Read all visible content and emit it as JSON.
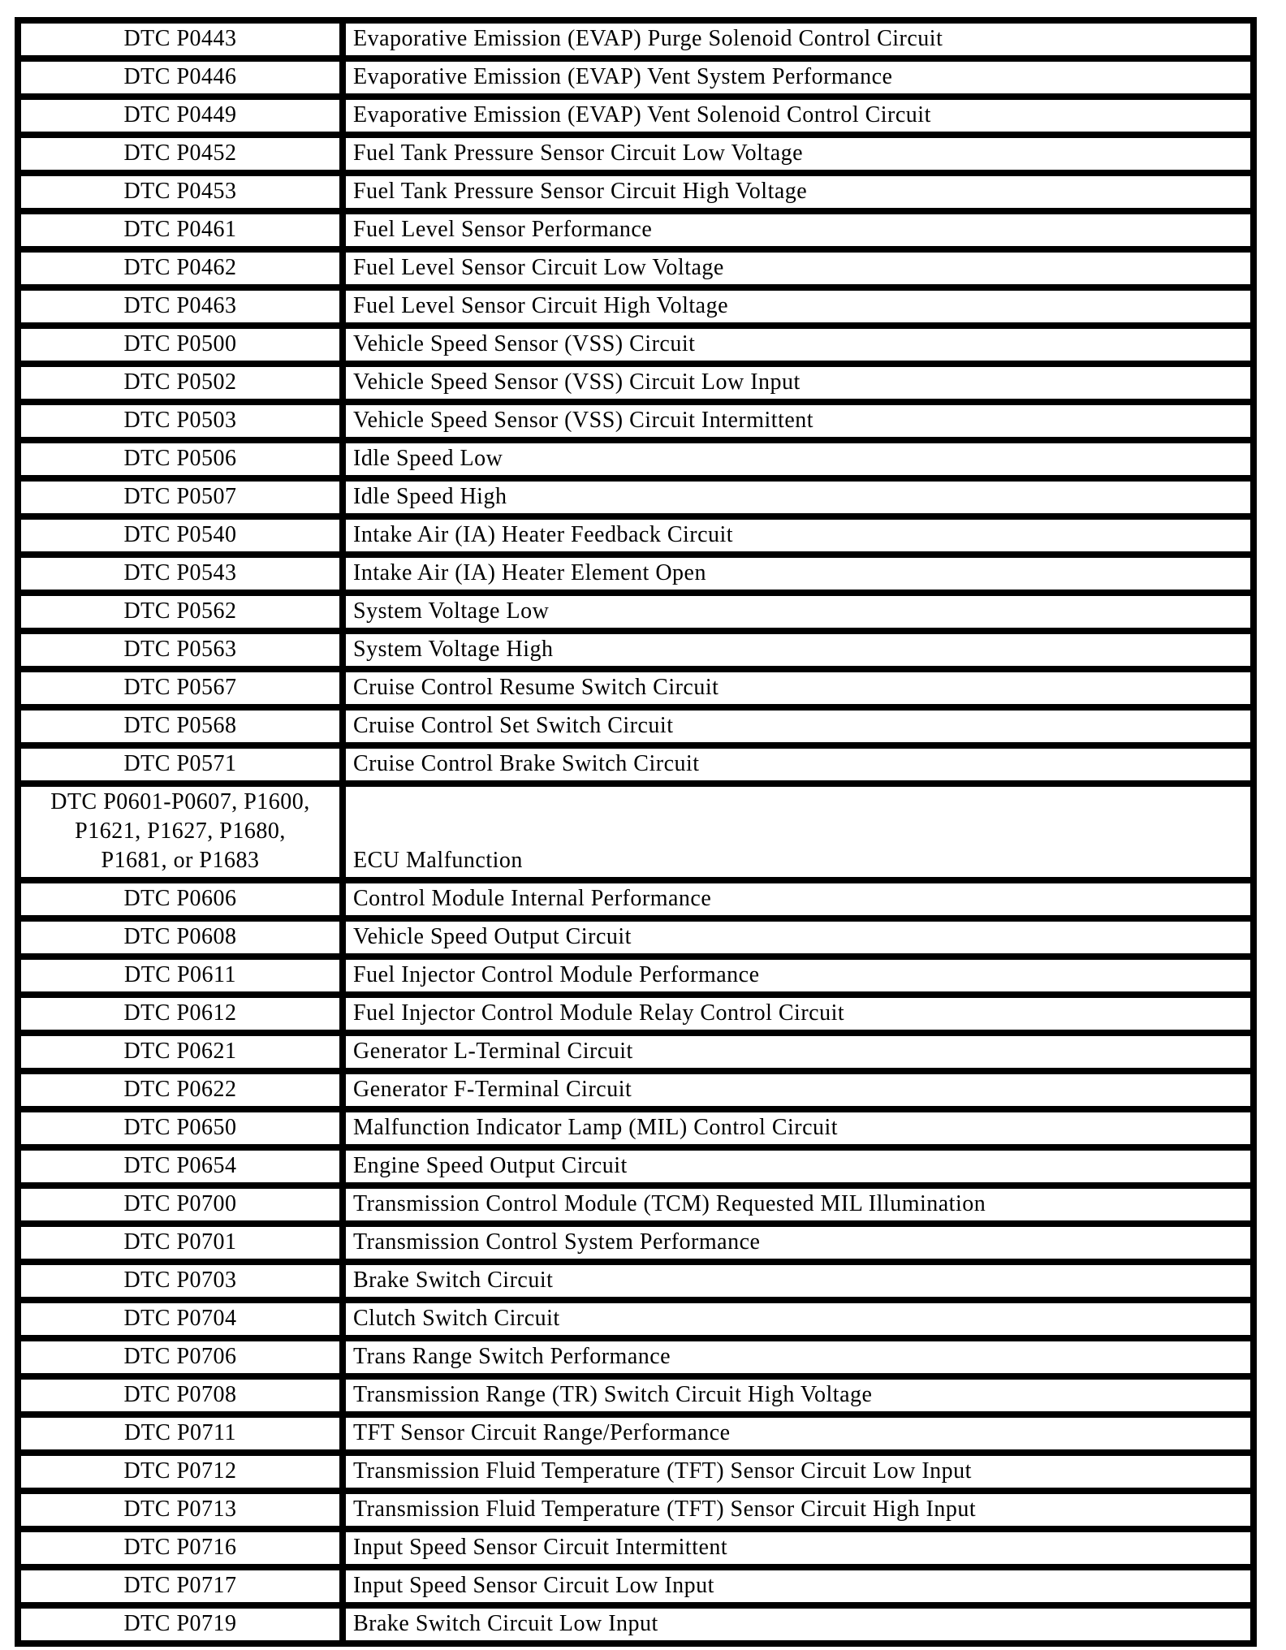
{
  "colors": {
    "background": "#ffffff",
    "border": "#000000",
    "text": "#000000"
  },
  "table": {
    "columns": [
      "dtc_code",
      "description"
    ],
    "rows": [
      {
        "code": "DTC P0443",
        "description": "Evaporative Emission (EVAP) Purge Solenoid Control Circuit"
      },
      {
        "code": "DTC P0446",
        "description": "Evaporative Emission (EVAP) Vent System Performance"
      },
      {
        "code": "DTC P0449",
        "description": "Evaporative Emission (EVAP) Vent Solenoid Control Circuit"
      },
      {
        "code": "DTC P0452",
        "description": "Fuel Tank Pressure Sensor Circuit Low Voltage"
      },
      {
        "code": "DTC P0453",
        "description": "Fuel Tank Pressure Sensor Circuit High Voltage"
      },
      {
        "code": "DTC P0461",
        "description": "Fuel Level Sensor Performance"
      },
      {
        "code": "DTC P0462",
        "description": "Fuel Level Sensor Circuit Low Voltage"
      },
      {
        "code": "DTC P0463",
        "description": "Fuel Level Sensor Circuit High Voltage"
      },
      {
        "code": "DTC P0500",
        "description": "Vehicle Speed Sensor (VSS) Circuit"
      },
      {
        "code": "DTC P0502",
        "description": "Vehicle Speed Sensor (VSS) Circuit Low Input"
      },
      {
        "code": "DTC P0503",
        "description": "Vehicle Speed Sensor (VSS) Circuit Intermittent"
      },
      {
        "code": "DTC P0506",
        "description": "Idle Speed Low"
      },
      {
        "code": "DTC P0507",
        "description": "Idle Speed High"
      },
      {
        "code": "DTC P0540",
        "description": "Intake Air (IA) Heater Feedback Circuit"
      },
      {
        "code": "DTC P0543",
        "description": "Intake Air (IA) Heater Element Open"
      },
      {
        "code": "DTC P0562",
        "description": "System Voltage Low"
      },
      {
        "code": "DTC P0563",
        "description": "System Voltage High"
      },
      {
        "code": "DTC P0567",
        "description": "Cruise Control Resume Switch Circuit"
      },
      {
        "code": "DTC P0568",
        "description": "Cruise Control Set Switch Circuit"
      },
      {
        "code": "DTC P0571",
        "description": "Cruise Control Brake Switch Circuit"
      },
      {
        "code": "DTC P0601-P0607, P1600,\nP1621, P1627, P1680,\nP1681, or P1683",
        "description": "ECU Malfunction"
      },
      {
        "code": "DTC P0606",
        "description": "Control Module Internal Performance"
      },
      {
        "code": "DTC P0608",
        "description": "Vehicle Speed Output Circuit"
      },
      {
        "code": "DTC P0611",
        "description": "Fuel Injector Control Module Performance"
      },
      {
        "code": "DTC P0612",
        "description": "Fuel Injector Control Module Relay Control Circuit"
      },
      {
        "code": "DTC P0621",
        "description": "Generator L-Terminal Circuit"
      },
      {
        "code": "DTC P0622",
        "description": "Generator F-Terminal Circuit"
      },
      {
        "code": "DTC P0650",
        "description": "Malfunction Indicator Lamp (MIL) Control Circuit"
      },
      {
        "code": "DTC P0654",
        "description": "Engine Speed Output Circuit"
      },
      {
        "code": "DTC P0700",
        "description": "Transmission Control Module (TCM) Requested MIL Illumination"
      },
      {
        "code": "DTC P0701",
        "description": "Transmission Control System Performance"
      },
      {
        "code": "DTC P0703",
        "description": "Brake Switch Circuit"
      },
      {
        "code": "DTC P0704",
        "description": "Clutch Switch Circuit"
      },
      {
        "code": "DTC P0706",
        "description": "Trans Range Switch Performance"
      },
      {
        "code": "DTC P0708",
        "description": "Transmission Range (TR) Switch Circuit High Voltage"
      },
      {
        "code": "DTC P0711",
        "description": "TFT Sensor Circuit Range/Performance"
      },
      {
        "code": "DTC P0712",
        "description": "Transmission Fluid Temperature (TFT) Sensor Circuit Low Input"
      },
      {
        "code": "DTC P0713",
        "description": "Transmission Fluid Temperature (TFT) Sensor Circuit High Input"
      },
      {
        "code": "DTC P0716",
        "description": "Input Speed Sensor Circuit Intermittent"
      },
      {
        "code": "DTC P0717",
        "description": "Input Speed Sensor Circuit Low Input"
      },
      {
        "code": "DTC P0719",
        "description": "Brake Switch Circuit Low Input"
      }
    ]
  }
}
